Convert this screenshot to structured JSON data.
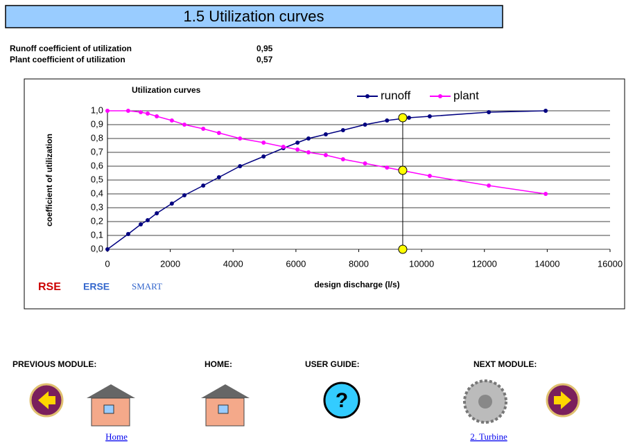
{
  "header": {
    "title": "1.5 Utilization curves"
  },
  "coefficients": [
    {
      "label": "Runoff coefficient of utilization",
      "value": "0,95"
    },
    {
      "label": "Plant coefficient of utilization",
      "value": "0,57"
    }
  ],
  "chart_data": {
    "type": "line",
    "title": "Utilization curves",
    "x_label": "design discharge (l/s)",
    "y_label": "coefficient of utilization",
    "xlim": [
      0,
      16000
    ],
    "xticks": [
      0,
      2000,
      4000,
      6000,
      8000,
      10000,
      12000,
      14000,
      16000
    ],
    "ylim": [
      0,
      1
    ],
    "yticks": [
      {
        "value": 0,
        "label": "0,0"
      },
      {
        "value": 0.1,
        "label": "0,1"
      },
      {
        "value": 0.2,
        "label": "0,2"
      },
      {
        "value": 0.3,
        "label": "0,3"
      },
      {
        "value": 0.4,
        "label": "0,4"
      },
      {
        "value": 0.5,
        "label": "0,5"
      },
      {
        "value": 0.6,
        "label": "0,6"
      },
      {
        "value": 0.7,
        "label": "0,7"
      },
      {
        "value": 0.8,
        "label": "0,8"
      },
      {
        "value": 0.9,
        "label": "0,9"
      },
      {
        "value": 1,
        "label": "1,0"
      }
    ],
    "grid": true,
    "legend": "top",
    "series": [
      {
        "name": "runoff",
        "color": "#000080",
        "x": [
          0,
          660,
          1060,
          1280,
          1570,
          2050,
          2450,
          3050,
          3550,
          4220,
          4970,
          5600,
          6050,
          6400,
          6950,
          7500,
          8200,
          8900,
          9600,
          10260,
          12140,
          13950
        ],
        "values": [
          0,
          0.11,
          0.18,
          0.21,
          0.26,
          0.33,
          0.39,
          0.46,
          0.52,
          0.6,
          0.67,
          0.73,
          0.77,
          0.8,
          0.83,
          0.86,
          0.9,
          0.93,
          0.95,
          0.96,
          0.99,
          1.0
        ]
      },
      {
        "name": "plant",
        "color": "#ff00ff",
        "x": [
          0,
          660,
          1060,
          1280,
          1570,
          2050,
          2450,
          3050,
          3550,
          4220,
          4970,
          5600,
          6050,
          6400,
          6950,
          7500,
          8200,
          8900,
          10260,
          12140,
          13950
        ],
        "values": [
          1.0,
          1.0,
          0.99,
          0.98,
          0.96,
          0.93,
          0.9,
          0.87,
          0.84,
          0.8,
          0.77,
          0.74,
          0.72,
          0.7,
          0.68,
          0.65,
          0.62,
          0.59,
          0.53,
          0.46,
          0.4
        ]
      }
    ],
    "marker": {
      "x": 9400,
      "values": [
        0.95,
        0.57,
        0
      ],
      "color": "#ffff00"
    },
    "logos": [
      "RSE",
      "ERSE",
      "SMART"
    ]
  },
  "navigation": {
    "previous": "PREVIOUS MODULE:",
    "home": "HOME:",
    "guide": "USER GUIDE:",
    "next": "NEXT MODULE:",
    "home_link": "Home",
    "next_link": "2. Turbine"
  }
}
